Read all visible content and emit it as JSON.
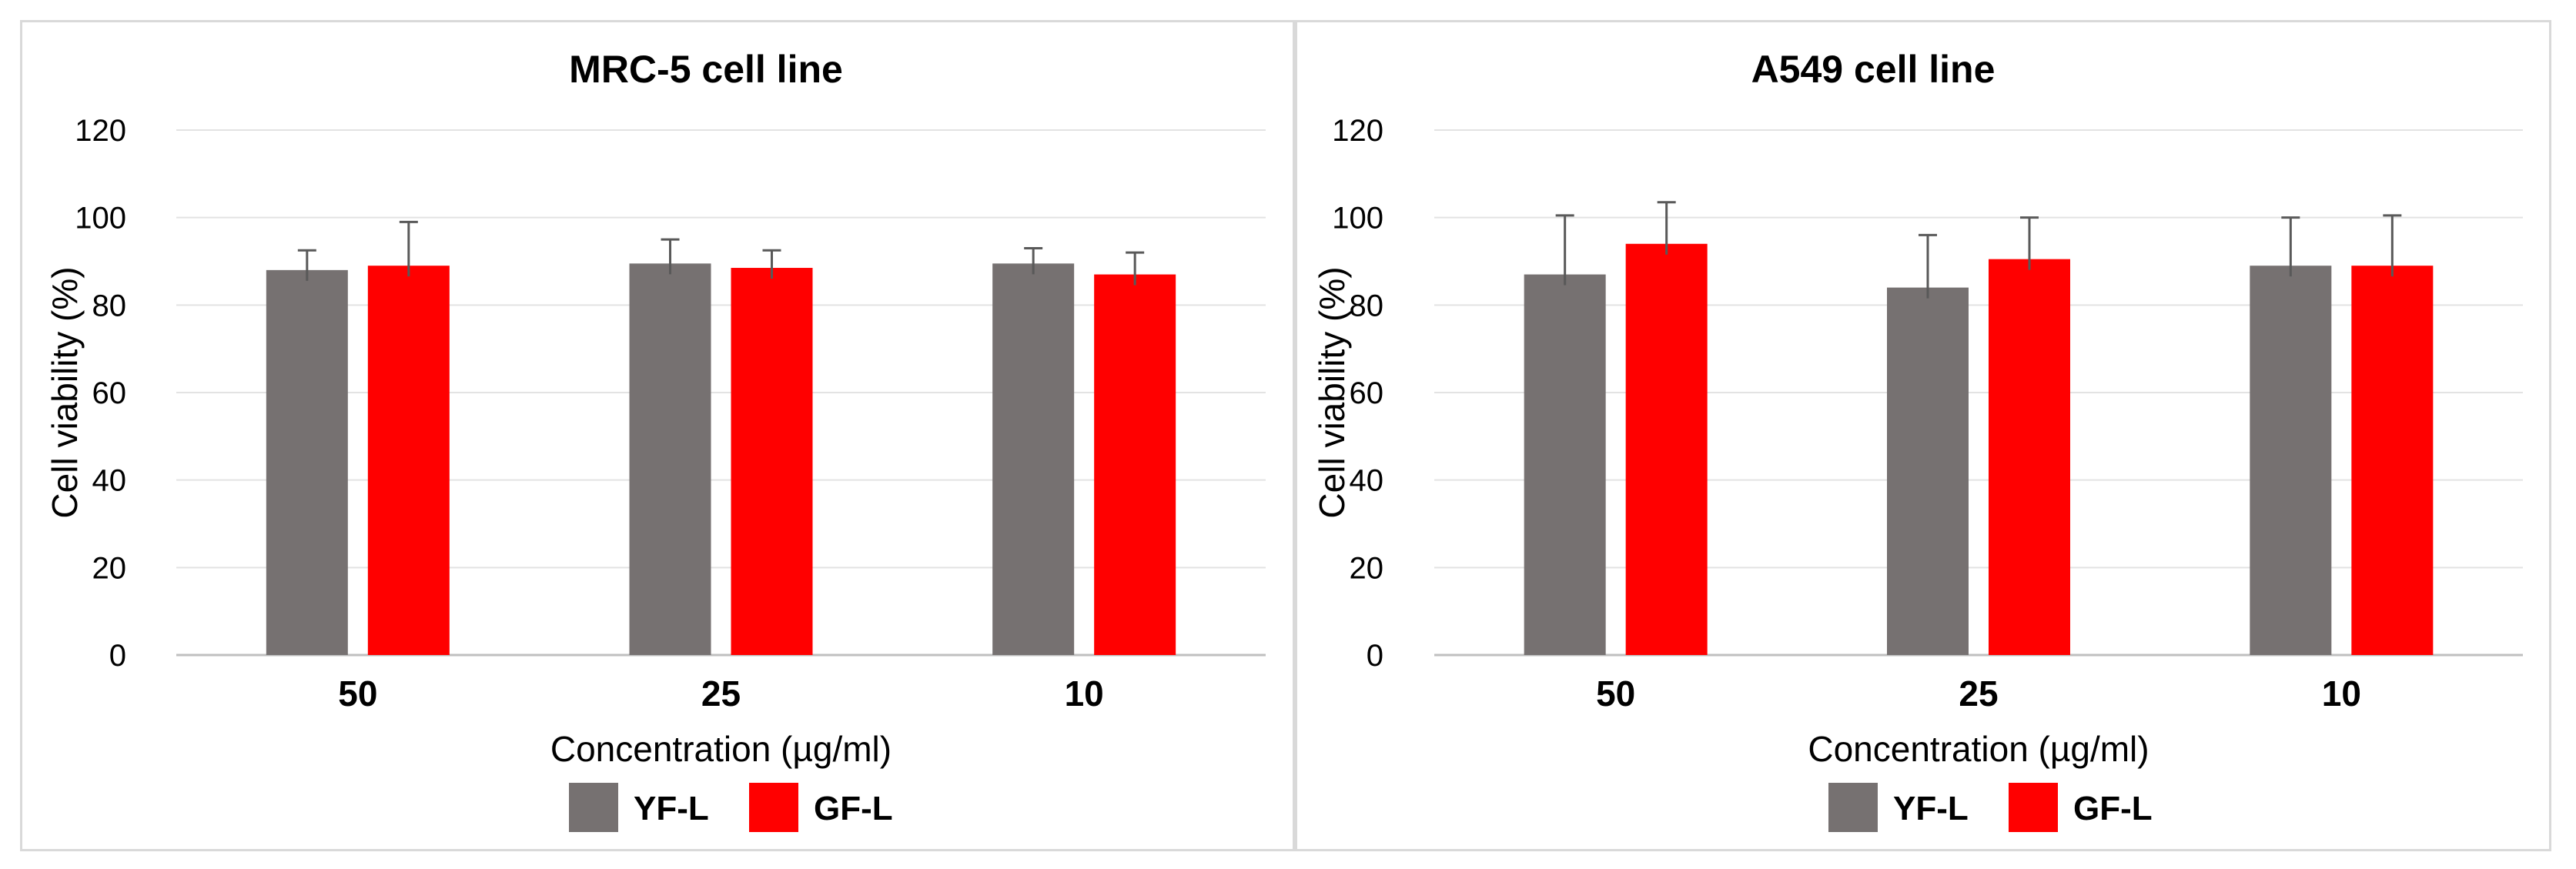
{
  "chart_data": [
    {
      "type": "bar",
      "title": "MRC-5 cell line",
      "xlabel": "Concentration (µg/ml)",
      "ylabel": "Cell viability (%)",
      "ylim": [
        0,
        120
      ],
      "yticks": [
        "0",
        "20",
        "40",
        "60",
        "80",
        "100",
        "120"
      ],
      "grid": true,
      "legend": "bottom",
      "categories": [
        "50",
        "25",
        "10"
      ],
      "series": [
        {
          "name": "YF-L",
          "color": "#767171",
          "values": [
            88,
            89.5,
            89.5
          ],
          "errors": [
            4.5,
            5.5,
            3.5
          ]
        },
        {
          "name": "GF-L",
          "color": "#ff0000",
          "values": [
            89,
            88.5,
            87
          ],
          "errors": [
            10,
            4,
            5
          ]
        }
      ]
    },
    {
      "type": "bar",
      "title": "A549 cell line",
      "xlabel": "Concentration (µg/ml)",
      "ylabel": "Cell viability (%)",
      "ylim": [
        0,
        120
      ],
      "yticks": [
        "0",
        "20",
        "40",
        "60",
        "80",
        "100",
        "120"
      ],
      "grid": true,
      "legend": "bottom",
      "categories": [
        "50",
        "25",
        "10"
      ],
      "series": [
        {
          "name": "YF-L",
          "color": "#767171",
          "values": [
            87,
            84,
            89
          ],
          "errors": [
            13.5,
            12,
            11
          ]
        },
        {
          "name": "GF-L",
          "color": "#ff0000",
          "values": [
            94,
            90.5,
            89
          ],
          "errors": [
            9.5,
            9.5,
            11.5
          ]
        }
      ]
    }
  ]
}
